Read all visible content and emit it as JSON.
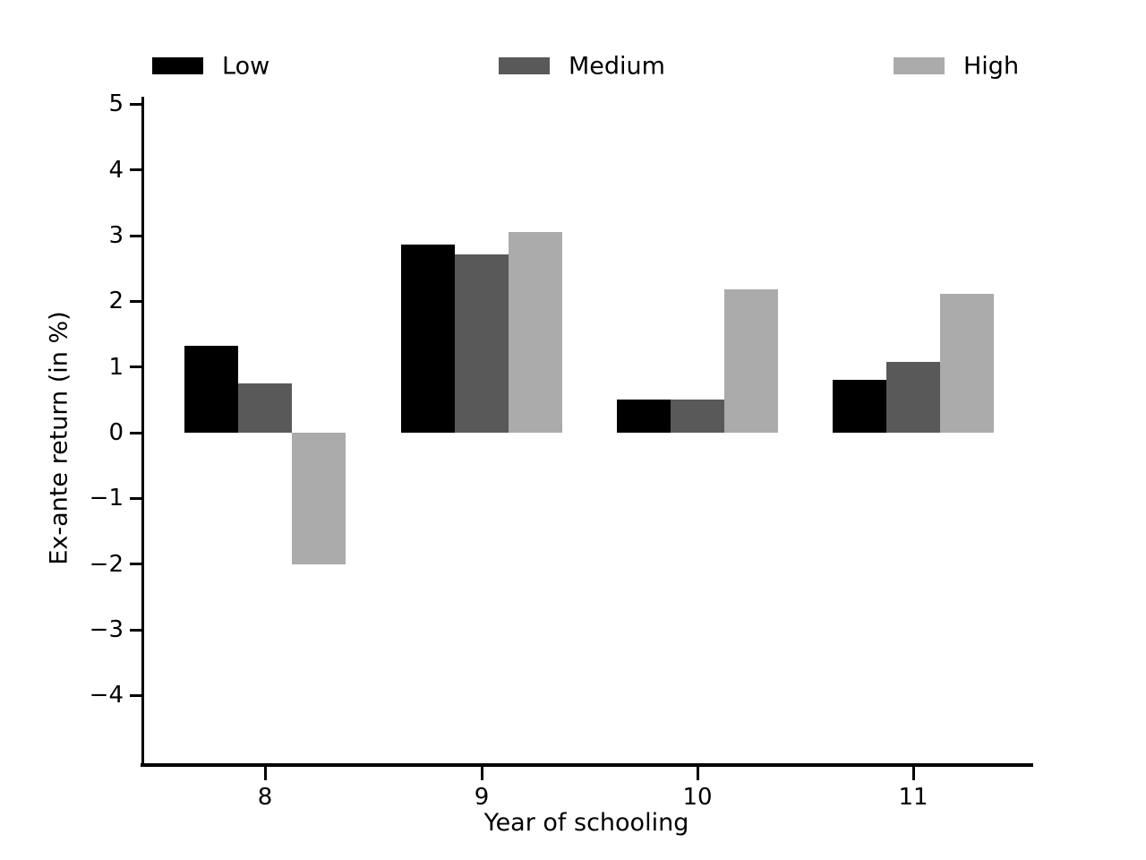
{
  "figure": {
    "background": "#ffffff",
    "text_color": "#000000"
  },
  "legend": {
    "position": "top",
    "items": [
      {
        "label": "Low",
        "color": "#000000"
      },
      {
        "label": "Medium",
        "color": "#595959"
      },
      {
        "label": "High",
        "color": "#ababab"
      }
    ]
  },
  "chart_data": {
    "type": "bar",
    "title": "",
    "xlabel": "Year of schooling",
    "ylabel": "Ex-ante return (in %)",
    "categories": [
      "8",
      "9",
      "10",
      "11"
    ],
    "series": [
      {
        "name": "Low",
        "color": "#000000",
        "values": [
          1.33,
          2.87,
          0.51,
          0.8
        ]
      },
      {
        "name": "Medium",
        "color": "#595959",
        "values": [
          0.75,
          2.71,
          0.5,
          1.08
        ]
      },
      {
        "name": "High",
        "color": "#ababab",
        "values": [
          -2.0,
          3.05,
          2.18,
          2.12
        ]
      }
    ],
    "yticks": [
      5,
      4,
      3,
      2,
      1,
      0,
      -1,
      -2,
      -3,
      -4
    ],
    "ylim": [
      -5.05,
      5.12
    ],
    "grid": false,
    "legend_position": "top"
  }
}
